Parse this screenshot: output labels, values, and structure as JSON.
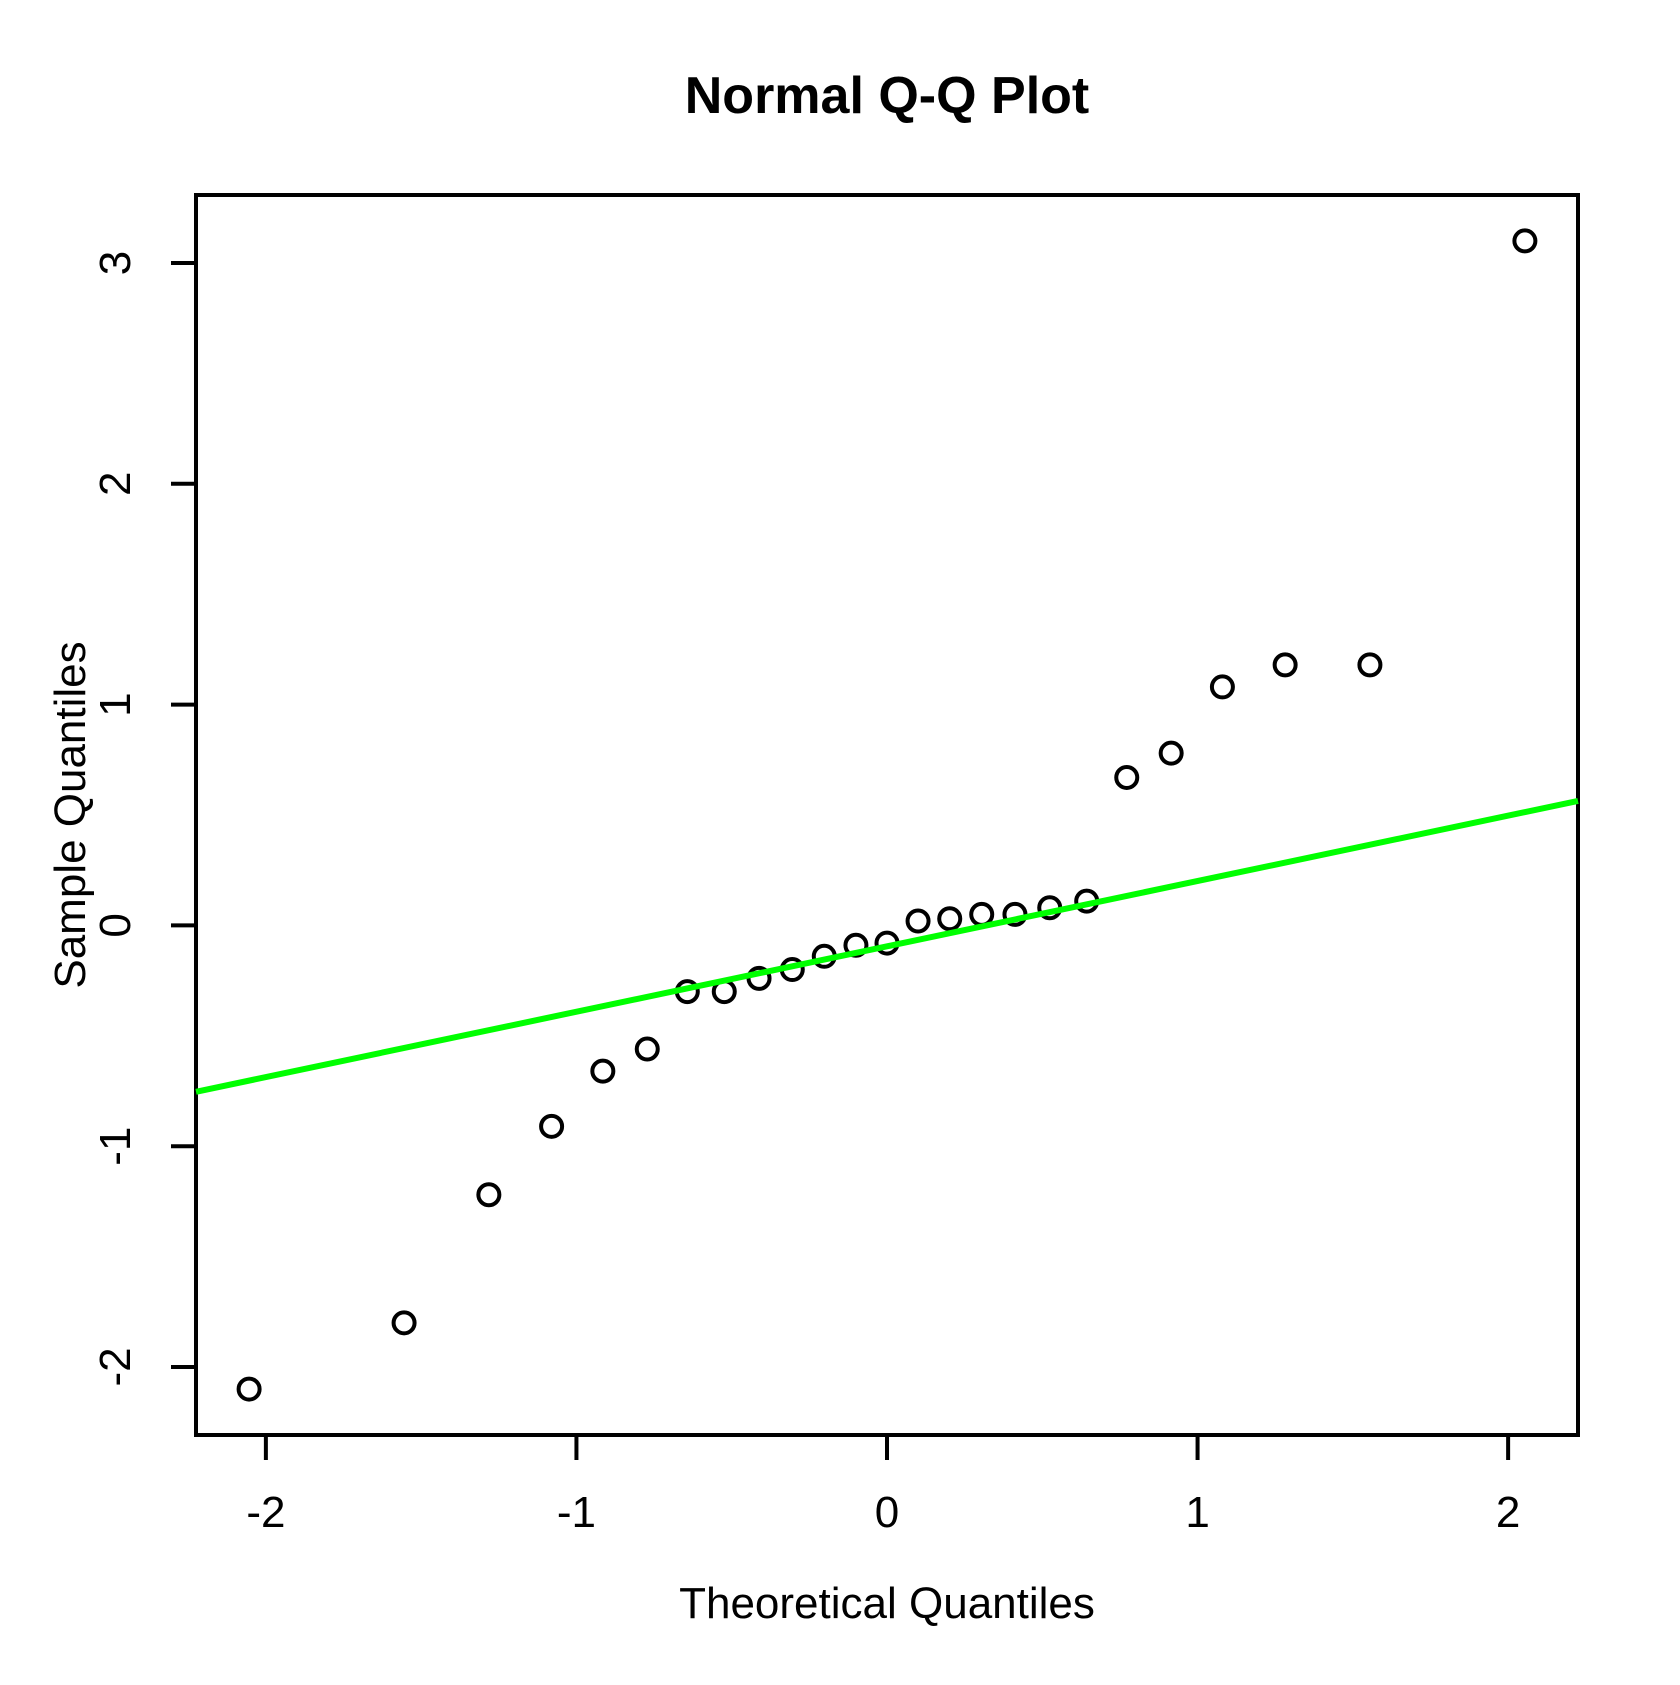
{
  "page": {
    "background": "#FFFFFF",
    "foreground": "#000000"
  },
  "chart_data": {
    "type": "scatter",
    "title": "Normal Q-Q Plot",
    "xlabel": "Theoretical Quantiles",
    "ylabel": "Sample Quantiles",
    "xlim": [
      -2.225,
      2.225
    ],
    "ylim": [
      -2.308,
      3.308
    ],
    "x_ticks": [
      -2,
      -1,
      0,
      1,
      2
    ],
    "x_tick_labels": [
      "-2",
      "-1",
      "0",
      "1",
      "2"
    ],
    "y_ticks": [
      -2,
      -1,
      0,
      1,
      2,
      3
    ],
    "y_tick_labels": [
      "-2",
      "-1",
      "0",
      "1",
      "2",
      "3"
    ],
    "grid": false,
    "legend": null,
    "series": [
      {
        "name": "sample-quantiles-points",
        "marker": "open-circle",
        "color": "#000000",
        "x": [
          -2.054,
          -1.555,
          -1.282,
          -1.08,
          -0.915,
          -0.772,
          -0.643,
          -0.524,
          -0.412,
          -0.305,
          -0.202,
          -0.1,
          0.0,
          0.1,
          0.202,
          0.305,
          0.412,
          0.524,
          0.643,
          0.772,
          0.915,
          1.08,
          1.282,
          1.555,
          2.054
        ],
        "y": [
          -2.1,
          -1.8,
          -1.22,
          -0.91,
          -0.66,
          -0.56,
          -0.3,
          -0.3,
          -0.24,
          -0.2,
          -0.14,
          -0.09,
          -0.08,
          0.02,
          0.03,
          0.05,
          0.05,
          0.08,
          0.11,
          0.67,
          0.78,
          1.08,
          1.18,
          1.18,
          3.1
        ]
      }
    ],
    "reference_line": {
      "name": "qqline",
      "slope": 0.296,
      "intercept": -0.095,
      "color": "#00FF00"
    }
  }
}
